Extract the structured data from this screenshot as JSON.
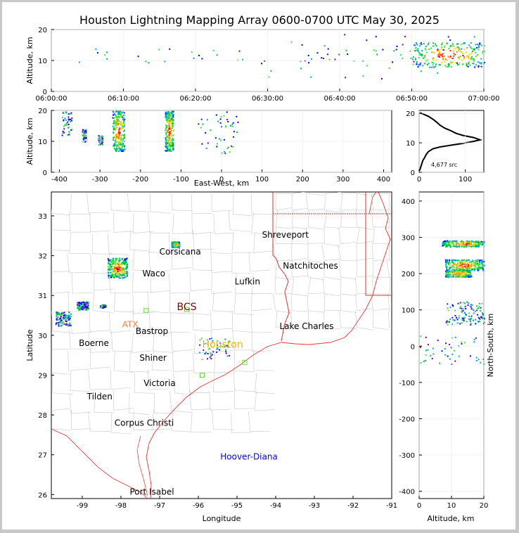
{
  "title": "Houston Lightning Mapping Array 0600-0700 UTC May 30, 2025",
  "colors": {
    "border": "#d33",
    "county": "#c8c8c8",
    "coast": "#e33",
    "scale": [
      "#5a00c8",
      "#0000ff",
      "#00a0ff",
      "#00c040",
      "#40e040",
      "#ffd000",
      "#ff8000",
      "#ff0000",
      "#800000"
    ]
  },
  "chart_data": [
    {
      "id": "time_altitude",
      "type": "scatter",
      "xlabel": "",
      "ylabel": "Altitude, km",
      "xticks": [
        "06:00:00",
        "06:10:00",
        "06:20:00",
        "06:30:00",
        "06:40:00",
        "06:50:00",
        "07:00:00"
      ],
      "yticks": [
        0,
        10,
        20
      ],
      "xlim_minutes": [
        0,
        60
      ],
      "ylim": [
        0,
        20
      ],
      "clusters": [
        {
          "t": [
            1,
            59
          ],
          "z": [
            9,
            14
          ],
          "density": "light"
        },
        {
          "t": [
            30,
            59
          ],
          "z": [
            4,
            20
          ],
          "density": "light"
        },
        {
          "t": [
            50,
            60
          ],
          "z": [
            8,
            16
          ],
          "density": "heavy"
        }
      ]
    },
    {
      "id": "ew_altitude",
      "type": "scatter",
      "xlabel": "East-West, km",
      "ylabel": "Altitude, km",
      "xticks": [
        -400,
        -300,
        -200,
        -100,
        0,
        100,
        200,
        300,
        400
      ],
      "yticks": [
        0,
        10,
        20
      ],
      "xlim": [
        -420,
        420
      ],
      "ylim": [
        0,
        20
      ],
      "clusters": [
        {
          "x": [
            -395,
            -370
          ],
          "z": [
            12,
            20
          ],
          "density": "light"
        },
        {
          "x": [
            -345,
            -335
          ],
          "z": [
            10,
            14
          ],
          "density": "light"
        },
        {
          "x": [
            -305,
            -295
          ],
          "z": [
            9,
            12
          ],
          "density": "light"
        },
        {
          "x": [
            -270,
            -240
          ],
          "z": [
            7,
            20
          ],
          "density": "heavy"
        },
        {
          "x": [
            -140,
            -120
          ],
          "z": [
            7,
            20
          ],
          "density": "heavy"
        },
        {
          "x": [
            -60,
            40
          ],
          "z": [
            6,
            20
          ],
          "density": "light"
        }
      ]
    },
    {
      "id": "altitude_histogram",
      "type": "line",
      "xlabel": "",
      "ylabel": "",
      "xticks": [
        0,
        100
      ],
      "yticks": [
        0,
        10,
        20
      ],
      "xlim": [
        0,
        140
      ],
      "ylim": [
        0,
        21
      ],
      "annotation": "4,677 src",
      "profile": [
        [
          0,
          0.5
        ],
        [
          2,
          1
        ],
        [
          4,
          2
        ],
        [
          6,
          3
        ],
        [
          8,
          4
        ],
        [
          12,
          5
        ],
        [
          15,
          6
        ],
        [
          20,
          7
        ],
        [
          30,
          8
        ],
        [
          45,
          8.6
        ],
        [
          70,
          9.2
        ],
        [
          95,
          9.8
        ],
        [
          118,
          10.5
        ],
        [
          132,
          11
        ],
        [
          118,
          11.8
        ],
        [
          95,
          12.5
        ],
        [
          80,
          13.2
        ],
        [
          70,
          14
        ],
        [
          55,
          15
        ],
        [
          45,
          16
        ],
        [
          38,
          17
        ],
        [
          30,
          18
        ],
        [
          20,
          19
        ],
        [
          8,
          19.8
        ],
        [
          2,
          20.2
        ]
      ]
    },
    {
      "id": "plan_map",
      "type": "scatter",
      "xlabel": "Longitude",
      "ylabel": "Latitude",
      "xticks": [
        -99,
        -98,
        -97,
        -96,
        -95,
        -94,
        -93,
        -92,
        -91
      ],
      "yticks": [
        26,
        27,
        28,
        29,
        30,
        31,
        32,
        33
      ],
      "xlim": [
        -99.8,
        -91
      ],
      "ylim": [
        25.9,
        33.6
      ],
      "cities": [
        {
          "name": "Shreveport",
          "lon": -93.75,
          "lat": 32.52,
          "color": "#000000"
        },
        {
          "name": "Corsicana",
          "lon": -96.47,
          "lat": 32.1,
          "color": "#000000"
        },
        {
          "name": "Natchitoches",
          "lon": -93.1,
          "lat": 31.75,
          "color": "#000000"
        },
        {
          "name": "Waco",
          "lon": -97.15,
          "lat": 31.55,
          "color": "#000000"
        },
        {
          "name": "Lufkin",
          "lon": -94.73,
          "lat": 31.35,
          "color": "#000000"
        },
        {
          "name": "BCS",
          "lon": -96.3,
          "lat": 30.7,
          "color": "#800000",
          "large": true
        },
        {
          "name": "ATX",
          "lon": -97.76,
          "lat": 30.27,
          "color": "#ff8040"
        },
        {
          "name": "Bastrop",
          "lon": -97.2,
          "lat": 30.1,
          "color": "#000000"
        },
        {
          "name": "Lake Charles",
          "lon": -93.2,
          "lat": 30.23,
          "color": "#000000"
        },
        {
          "name": "Boerne",
          "lon": -98.7,
          "lat": 29.8,
          "color": "#000000"
        },
        {
          "name": "Houston",
          "lon": -95.37,
          "lat": 29.76,
          "color": "#e6b400",
          "large": true
        },
        {
          "name": "Shiner",
          "lon": -97.17,
          "lat": 29.43,
          "color": "#000000"
        },
        {
          "name": "Victoria",
          "lon": -97.0,
          "lat": 28.8,
          "color": "#000000"
        },
        {
          "name": "Tilden",
          "lon": -98.55,
          "lat": 28.46,
          "color": "#000000"
        },
        {
          "name": "Corpus Christi",
          "lon": -97.4,
          "lat": 27.8,
          "color": "#000000"
        },
        {
          "name": "Hoover-Diana",
          "lon": -94.69,
          "lat": 26.95,
          "color": "#0000ff"
        },
        {
          "name": "Port Isabel",
          "lon": -97.2,
          "lat": 26.07,
          "color": "#000000"
        }
      ],
      "stations": [
        [
          -97.35,
          30.62
        ],
        [
          -96.3,
          30.65
        ],
        [
          -95.9,
          29.0
        ],
        [
          -94.8,
          29.32
        ]
      ],
      "clusters": [
        {
          "lon": [
            -96.7,
            -96.5
          ],
          "lat": [
            32.22,
            32.36
          ],
          "density": "heavy"
        },
        {
          "lon": [
            -98.35,
            -97.85
          ],
          "lat": [
            31.45,
            31.95
          ],
          "density": "heavy"
        },
        {
          "lon": [
            -99.15,
            -98.85
          ],
          "lat": [
            30.65,
            30.85
          ],
          "density": "medium"
        },
        {
          "lon": [
            -98.55,
            -98.4
          ],
          "lat": [
            30.7,
            30.78
          ],
          "density": "light"
        },
        {
          "lon": [
            -99.7,
            -99.3
          ],
          "lat": [
            30.25,
            30.6
          ],
          "density": "medium"
        },
        {
          "lon": [
            -96.0,
            -95.2
          ],
          "lat": [
            29.4,
            29.95
          ],
          "density": "light"
        }
      ]
    },
    {
      "id": "altitude_ns",
      "type": "scatter",
      "xlabel": "Altitude, km",
      "ylabel": "North-South, km",
      "xticks": [
        0,
        10,
        20
      ],
      "yticks": [
        -400,
        -300,
        -200,
        -100,
        0,
        100,
        200,
        300,
        400
      ],
      "xlim": [
        0,
        20
      ],
      "ylim": [
        -420,
        425
      ],
      "clusters": [
        {
          "z": [
            7,
            20
          ],
          "y": [
            275,
            292
          ],
          "density": "heavy"
        },
        {
          "z": [
            8,
            20
          ],
          "y": [
            210,
            240
          ],
          "density": "heavy"
        },
        {
          "z": [
            8,
            16
          ],
          "y": [
            192,
            212
          ],
          "density": "heavy"
        },
        {
          "z": [
            8,
            20
          ],
          "y": [
            60,
            125
          ],
          "density": "medium"
        },
        {
          "z": [
            0,
            20
          ],
          "y": [
            -50,
            30
          ],
          "density": "light"
        }
      ]
    }
  ]
}
